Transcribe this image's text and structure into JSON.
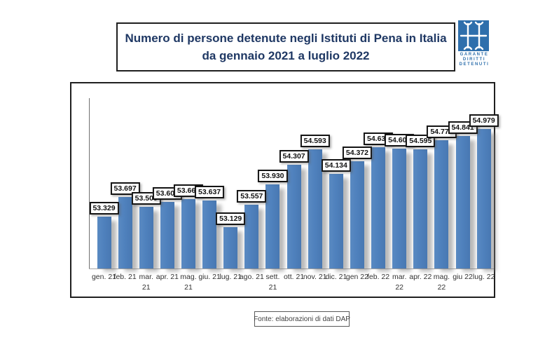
{
  "title": {
    "line1": "Numero di persone detenute negli Istituti di Pena in Italia",
    "line2": "da gennaio 2021 a luglio 2022"
  },
  "logo": {
    "icon": "garante-double-h-icon",
    "square_color": "#2E6FAC",
    "line1": "GARANTE",
    "line2": "DIRITTI",
    "line3": "DETENUTI"
  },
  "source": {
    "text": "Fonte: elaborazioni di dati DAP"
  },
  "colors": {
    "title_text": "#1F3864",
    "bar": "#4F81BD",
    "border": "#1f1f1f"
  },
  "chart_data": {
    "type": "bar",
    "title": "Numero di persone detenute negli Istituti di Pena in Italia da gennaio 2021 a luglio 2022",
    "xlabel": "",
    "ylabel": "",
    "grid": false,
    "legend": false,
    "ylim": [
      52350,
      55560
    ],
    "categories": [
      "gen. 21",
      "feb. 21",
      "mar.\n21",
      "apr. 21",
      "mag.\n21",
      "giu. 21",
      "lug. 21",
      "ago. 21",
      "sett.\n21",
      "ott. 21",
      "nov. 21",
      "dic. 21",
      "gen 22",
      "feb. 22",
      "mar.\n22",
      "apr. 22",
      "mag.\n22",
      "giu 22",
      "lug. 22"
    ],
    "values": [
      53329,
      53697,
      53509,
      53608,
      53664,
      53637,
      53129,
      53557,
      53930,
      54307,
      54593,
      54134,
      54372,
      54635,
      54609,
      54595,
      54771,
      54841,
      54979
    ],
    "data_labels": [
      "53.329",
      "53.697",
      "53.509",
      "53.608",
      "53.664",
      "53.637",
      "53.129",
      "53.557",
      "53.930",
      "54.307",
      "54.593",
      "54.134",
      "54.372",
      "54.635",
      "54.609",
      "54.595",
      "54.771",
      "54.841",
      "54.979"
    ]
  }
}
